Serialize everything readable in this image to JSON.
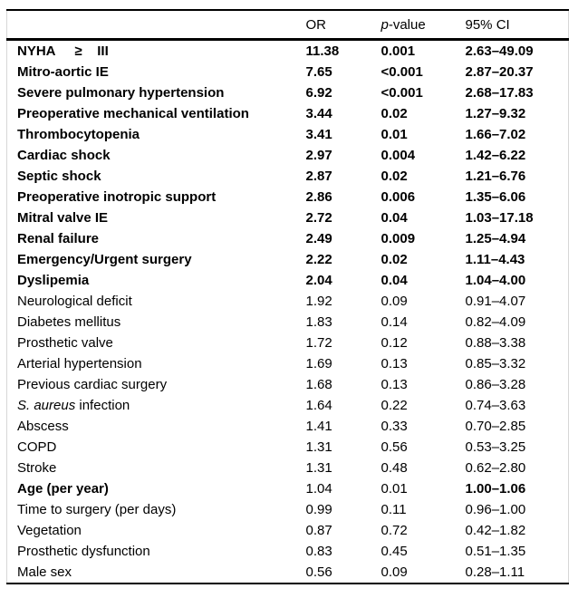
{
  "table": {
    "header": {
      "or": "OR",
      "p_italic": "p",
      "p_rest": "-value",
      "ci": "95% CI"
    },
    "rows": [
      {
        "label": "NYHA     ≥    III",
        "or": "11.38",
        "p": "0.001",
        "ci": "2.63–49.09",
        "weight": "bold"
      },
      {
        "label": "Mitro-aortic IE",
        "or": "7.65",
        "p": "<0.001",
        "ci": "2.87–20.37",
        "weight": "bold"
      },
      {
        "label": "Severe pulmonary hypertension",
        "or": "6.92",
        "p": "<0.001",
        "ci": "2.68–17.83",
        "weight": "bold"
      },
      {
        "label": "Preoperative mechanical ventilation",
        "or": "3.44",
        "p": "0.02",
        "ci": "1.27–9.32",
        "weight": "bold"
      },
      {
        "label": "Thrombocytopenia",
        "or": "3.41",
        "p": "0.01",
        "ci": "1.66–7.02",
        "weight": "bold"
      },
      {
        "label": "Cardiac shock",
        "or": "2.97",
        "p": "0.004",
        "ci": "1.42–6.22",
        "weight": "bold"
      },
      {
        "label": "Septic shock",
        "or": "2.87",
        "p": "0.02",
        "ci": "1.21–6.76",
        "weight": "bold"
      },
      {
        "label": "Preoperative inotropic support",
        "or": "2.86",
        "p": "0.006",
        "ci": "1.35–6.06",
        "weight": "bold"
      },
      {
        "label": "Mitral valve IE",
        "or": "2.72",
        "p": "0.04",
        "ci": "1.03–17.18",
        "weight": "bold"
      },
      {
        "label": "Renal failure",
        "or": "2.49",
        "p": "0.009",
        "ci": "1.25–4.94",
        "weight": "bold"
      },
      {
        "label": "Emergency/Urgent surgery",
        "or": "2.22",
        "p": "0.02",
        "ci": "1.11–4.43",
        "weight": "bold"
      },
      {
        "label": "Dyslipemia",
        "or": "2.04",
        "p": "0.04",
        "ci": "1.04–4.00",
        "weight": "bold"
      },
      {
        "label": "Neurological deficit",
        "or": "1.92",
        "p": "0.09",
        "ci": "0.91–4.07",
        "weight": "normal"
      },
      {
        "label": "Diabetes mellitus",
        "or": "1.83",
        "p": "0.14",
        "ci": "0.82–4.09",
        "weight": "normal"
      },
      {
        "label": "Prosthetic valve",
        "or": "1.72",
        "p": "0.12",
        "ci": "0.88–3.38",
        "weight": "normal"
      },
      {
        "label": "Arterial hypertension",
        "or": "1.69",
        "p": "0.13",
        "ci": "0.85–3.32",
        "weight": "normal"
      },
      {
        "label": "Previous cardiac surgery",
        "or": "1.68",
        "p": "0.13",
        "ci": "0.86–3.28",
        "weight": "normal"
      },
      {
        "label_italic": "S. aureus",
        "label": " infection",
        "or": "1.64",
        "p": "0.22",
        "ci": "0.74–3.63",
        "weight": "normal"
      },
      {
        "label": "Abscess",
        "or": "1.41",
        "p": "0.33",
        "ci": "0.70–2.85",
        "weight": "normal"
      },
      {
        "label": "COPD",
        "or": "1.31",
        "p": "0.56",
        "ci": "0.53–3.25",
        "weight": "normal"
      },
      {
        "label": "Stroke",
        "or": "1.31",
        "p": "0.48",
        "ci": "0.62–2.80",
        "weight": "normal"
      },
      {
        "label": "Age (per year)",
        "or": "1.04",
        "p": "0.01",
        "ci": "1.00–1.06",
        "weight": "mixed"
      },
      {
        "label": "Time to surgery (per days)",
        "or": "0.99",
        "p": "0.11",
        "ci": "0.96–1.00",
        "weight": "normal"
      },
      {
        "label": "Vegetation",
        "or": "0.87",
        "p": "0.72",
        "ci": "0.42–1.82",
        "weight": "normal"
      },
      {
        "label": "Prosthetic dysfunction",
        "or": "0.83",
        "p": "0.45",
        "ci": "0.51–1.35",
        "weight": "normal"
      },
      {
        "label": "Male sex",
        "or": "0.56",
        "p": "0.09",
        "ci": "0.28–1.11",
        "weight": "normal"
      }
    ]
  }
}
